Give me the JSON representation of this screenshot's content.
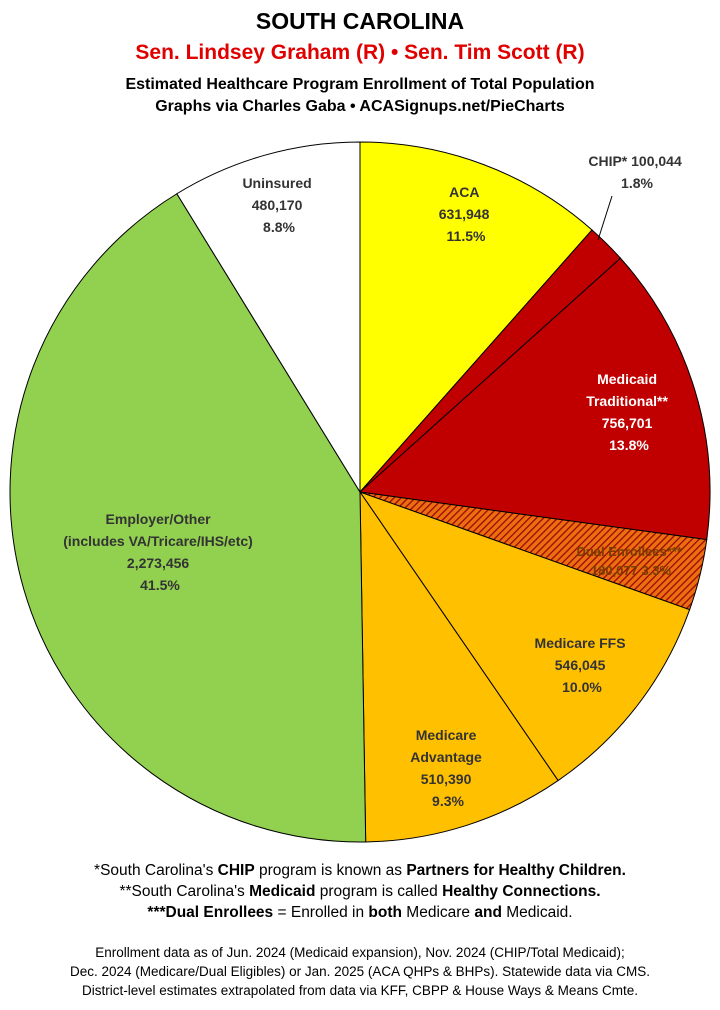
{
  "header": {
    "title": "SOUTH CAROLINA",
    "senators": "Sen. Lindsey Graham (R) • Sen. Tim Scott (R)",
    "subtitle": "Estimated Healthcare Program Enrollment of Total Population",
    "credit": "Graphs via Charles Gaba   •   ACASignups.net/PieCharts"
  },
  "chart_data": {
    "type": "pie",
    "title": "SOUTH CAROLINA",
    "slices": [
      {
        "label": "ACA",
        "value": 631948,
        "value_text": "631,948",
        "pct_text": "11.5%",
        "color": "#ffff00"
      },
      {
        "label": "CHIP*",
        "value": 100044,
        "value_text": "100,044",
        "pct_text": "1.8%",
        "color": "#c00000"
      },
      {
        "label": "Medicaid Traditional**",
        "value": 756701,
        "value_text": "756,701",
        "pct_text": "13.8%",
        "color": "#c00000"
      },
      {
        "label": "Dual Enrollees***",
        "value": 180077,
        "value_text": "180,077",
        "pct_text": "3.3%",
        "color": "#e06010",
        "pattern": "hatch"
      },
      {
        "label": "Medicare FFS",
        "value": 546045,
        "value_text": "546,045",
        "pct_text": "10.0%",
        "color": "#ffc000"
      },
      {
        "label": "Medicare Advantage",
        "value": 510390,
        "value_text": "510,390",
        "pct_text": "9.3%",
        "color": "#ffc000"
      },
      {
        "label": "Employer/Other (includes VA/Tricare/IHS/etc)",
        "value": 2273456,
        "value_text": "2,273,456",
        "pct_text": "41.5%",
        "color": "#92d050"
      },
      {
        "label": "Uninsured",
        "value": 480170,
        "value_text": "480,170",
        "pct_text": "8.8%",
        "color": "#ffffff"
      }
    ],
    "legend": "none"
  },
  "labels": {
    "aca": [
      "ACA",
      "631,948",
      "11.5%"
    ],
    "chip": [
      "CHIP* 100,044",
      "1.8%"
    ],
    "medicaid": [
      "Medicaid",
      "Traditional**",
      "756,701",
      "13.8%"
    ],
    "dual": [
      "Dual Enrollees***",
      "180,077 3.3%"
    ],
    "ffs": [
      "Medicare FFS",
      "546,045",
      "10.0%"
    ],
    "ma": [
      "Medicare",
      "Advantage",
      "510,390",
      "9.3%"
    ],
    "emp": [
      "Employer/Other",
      "(includes VA/Tricare/IHS/etc)",
      "2,273,456",
      "41.5%"
    ],
    "unins": [
      "Uninsured",
      "480,170",
      "8.8%"
    ]
  },
  "footnotes": {
    "f1a": "*South Carolina's ",
    "f1b": "CHIP",
    "f1c": " program is known as ",
    "f1d": "Partners for Healthy Children.",
    "f2a": "**South Carolina's ",
    "f2b": "Medicaid",
    "f2c": " program is called ",
    "f2d": "Healthy Connections.",
    "f3a": "***Dual Enrollees",
    "f3b": " = Enrolled in ",
    "f3c": "both",
    "f3d": " Medicare ",
    "f3e": "and",
    "f3f": " Medicaid."
  },
  "source": {
    "line1": "Enrollment data as of Jun. 2024 (Medicaid expansion), Nov. 2024 (CHIP/Total Medicaid);",
    "line2": "Dec. 2024 (Medicare/Dual Eligibles) or Jan. 2025 (ACA QHPs & BHPs). Statewide data via CMS.",
    "line3": "District-level estimates extrapolated from data via KFF, CBPP & House Ways & Means Cmte."
  }
}
